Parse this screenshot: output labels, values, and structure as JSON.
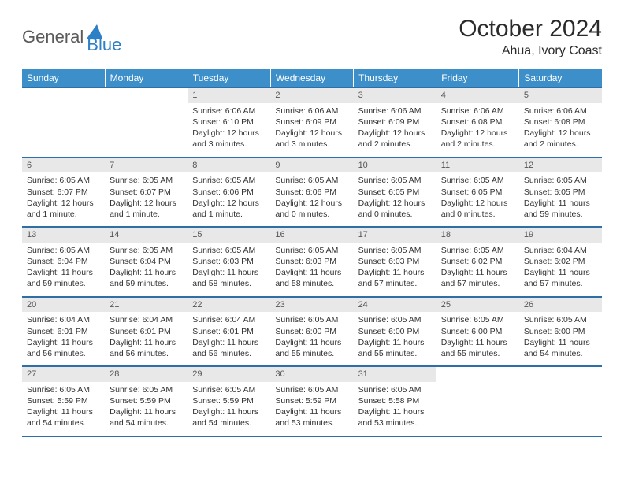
{
  "logo": {
    "part1": "General",
    "part2": "Blue"
  },
  "title": "October 2024",
  "location": "Ahua, Ivory Coast",
  "colors": {
    "header_bg": "#3d8fc9",
    "border": "#2d6fa6",
    "daynum_bg": "#e8e8e8",
    "text": "#333333",
    "logo_gray": "#5a5a5a",
    "logo_blue": "#2d7fc6"
  },
  "weekdays": [
    "Sunday",
    "Monday",
    "Tuesday",
    "Wednesday",
    "Thursday",
    "Friday",
    "Saturday"
  ],
  "weeks": [
    [
      {
        "empty": true
      },
      {
        "empty": true
      },
      {
        "d": "1",
        "sr": "Sunrise: 6:06 AM",
        "ss": "Sunset: 6:10 PM",
        "dl1": "Daylight: 12 hours",
        "dl2": "and 3 minutes."
      },
      {
        "d": "2",
        "sr": "Sunrise: 6:06 AM",
        "ss": "Sunset: 6:09 PM",
        "dl1": "Daylight: 12 hours",
        "dl2": "and 3 minutes."
      },
      {
        "d": "3",
        "sr": "Sunrise: 6:06 AM",
        "ss": "Sunset: 6:09 PM",
        "dl1": "Daylight: 12 hours",
        "dl2": "and 2 minutes."
      },
      {
        "d": "4",
        "sr": "Sunrise: 6:06 AM",
        "ss": "Sunset: 6:08 PM",
        "dl1": "Daylight: 12 hours",
        "dl2": "and 2 minutes."
      },
      {
        "d": "5",
        "sr": "Sunrise: 6:06 AM",
        "ss": "Sunset: 6:08 PM",
        "dl1": "Daylight: 12 hours",
        "dl2": "and 2 minutes."
      }
    ],
    [
      {
        "d": "6",
        "sr": "Sunrise: 6:05 AM",
        "ss": "Sunset: 6:07 PM",
        "dl1": "Daylight: 12 hours",
        "dl2": "and 1 minute."
      },
      {
        "d": "7",
        "sr": "Sunrise: 6:05 AM",
        "ss": "Sunset: 6:07 PM",
        "dl1": "Daylight: 12 hours",
        "dl2": "and 1 minute."
      },
      {
        "d": "8",
        "sr": "Sunrise: 6:05 AM",
        "ss": "Sunset: 6:06 PM",
        "dl1": "Daylight: 12 hours",
        "dl2": "and 1 minute."
      },
      {
        "d": "9",
        "sr": "Sunrise: 6:05 AM",
        "ss": "Sunset: 6:06 PM",
        "dl1": "Daylight: 12 hours",
        "dl2": "and 0 minutes."
      },
      {
        "d": "10",
        "sr": "Sunrise: 6:05 AM",
        "ss": "Sunset: 6:05 PM",
        "dl1": "Daylight: 12 hours",
        "dl2": "and 0 minutes."
      },
      {
        "d": "11",
        "sr": "Sunrise: 6:05 AM",
        "ss": "Sunset: 6:05 PM",
        "dl1": "Daylight: 12 hours",
        "dl2": "and 0 minutes."
      },
      {
        "d": "12",
        "sr": "Sunrise: 6:05 AM",
        "ss": "Sunset: 6:05 PM",
        "dl1": "Daylight: 11 hours",
        "dl2": "and 59 minutes."
      }
    ],
    [
      {
        "d": "13",
        "sr": "Sunrise: 6:05 AM",
        "ss": "Sunset: 6:04 PM",
        "dl1": "Daylight: 11 hours",
        "dl2": "and 59 minutes."
      },
      {
        "d": "14",
        "sr": "Sunrise: 6:05 AM",
        "ss": "Sunset: 6:04 PM",
        "dl1": "Daylight: 11 hours",
        "dl2": "and 59 minutes."
      },
      {
        "d": "15",
        "sr": "Sunrise: 6:05 AM",
        "ss": "Sunset: 6:03 PM",
        "dl1": "Daylight: 11 hours",
        "dl2": "and 58 minutes."
      },
      {
        "d": "16",
        "sr": "Sunrise: 6:05 AM",
        "ss": "Sunset: 6:03 PM",
        "dl1": "Daylight: 11 hours",
        "dl2": "and 58 minutes."
      },
      {
        "d": "17",
        "sr": "Sunrise: 6:05 AM",
        "ss": "Sunset: 6:03 PM",
        "dl1": "Daylight: 11 hours",
        "dl2": "and 57 minutes."
      },
      {
        "d": "18",
        "sr": "Sunrise: 6:05 AM",
        "ss": "Sunset: 6:02 PM",
        "dl1": "Daylight: 11 hours",
        "dl2": "and 57 minutes."
      },
      {
        "d": "19",
        "sr": "Sunrise: 6:04 AM",
        "ss": "Sunset: 6:02 PM",
        "dl1": "Daylight: 11 hours",
        "dl2": "and 57 minutes."
      }
    ],
    [
      {
        "d": "20",
        "sr": "Sunrise: 6:04 AM",
        "ss": "Sunset: 6:01 PM",
        "dl1": "Daylight: 11 hours",
        "dl2": "and 56 minutes."
      },
      {
        "d": "21",
        "sr": "Sunrise: 6:04 AM",
        "ss": "Sunset: 6:01 PM",
        "dl1": "Daylight: 11 hours",
        "dl2": "and 56 minutes."
      },
      {
        "d": "22",
        "sr": "Sunrise: 6:04 AM",
        "ss": "Sunset: 6:01 PM",
        "dl1": "Daylight: 11 hours",
        "dl2": "and 56 minutes."
      },
      {
        "d": "23",
        "sr": "Sunrise: 6:05 AM",
        "ss": "Sunset: 6:00 PM",
        "dl1": "Daylight: 11 hours",
        "dl2": "and 55 minutes."
      },
      {
        "d": "24",
        "sr": "Sunrise: 6:05 AM",
        "ss": "Sunset: 6:00 PM",
        "dl1": "Daylight: 11 hours",
        "dl2": "and 55 minutes."
      },
      {
        "d": "25",
        "sr": "Sunrise: 6:05 AM",
        "ss": "Sunset: 6:00 PM",
        "dl1": "Daylight: 11 hours",
        "dl2": "and 55 minutes."
      },
      {
        "d": "26",
        "sr": "Sunrise: 6:05 AM",
        "ss": "Sunset: 6:00 PM",
        "dl1": "Daylight: 11 hours",
        "dl2": "and 54 minutes."
      }
    ],
    [
      {
        "d": "27",
        "sr": "Sunrise: 6:05 AM",
        "ss": "Sunset: 5:59 PM",
        "dl1": "Daylight: 11 hours",
        "dl2": "and 54 minutes."
      },
      {
        "d": "28",
        "sr": "Sunrise: 6:05 AM",
        "ss": "Sunset: 5:59 PM",
        "dl1": "Daylight: 11 hours",
        "dl2": "and 54 minutes."
      },
      {
        "d": "29",
        "sr": "Sunrise: 6:05 AM",
        "ss": "Sunset: 5:59 PM",
        "dl1": "Daylight: 11 hours",
        "dl2": "and 54 minutes."
      },
      {
        "d": "30",
        "sr": "Sunrise: 6:05 AM",
        "ss": "Sunset: 5:59 PM",
        "dl1": "Daylight: 11 hours",
        "dl2": "and 53 minutes."
      },
      {
        "d": "31",
        "sr": "Sunrise: 6:05 AM",
        "ss": "Sunset: 5:58 PM",
        "dl1": "Daylight: 11 hours",
        "dl2": "and 53 minutes."
      },
      {
        "empty": true
      },
      {
        "empty": true
      }
    ]
  ]
}
